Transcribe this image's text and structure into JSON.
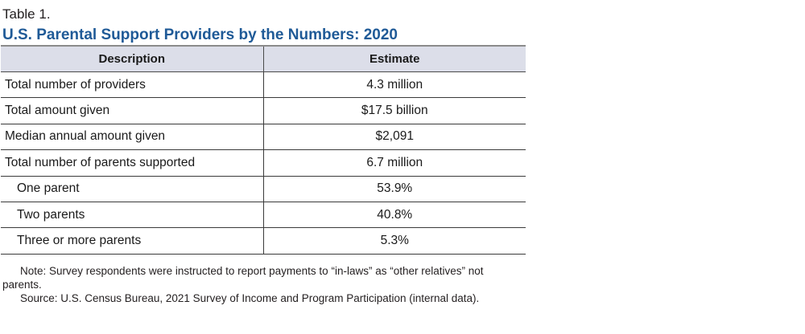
{
  "table_label": "Table 1.",
  "title": "U.S. Parental Support Providers by the Numbers: 2020",
  "columns": {
    "description": "Description",
    "estimate": "Estimate"
  },
  "rows": [
    {
      "description": "Total number of providers",
      "estimate": "4.3 million",
      "indent": false
    },
    {
      "description": "Total amount given",
      "estimate": "$17.5 billion",
      "indent": false
    },
    {
      "description": "Median annual amount given",
      "estimate": "$2,091",
      "indent": false
    },
    {
      "description": "Total number of parents supported",
      "estimate": "6.7 million",
      "indent": false
    },
    {
      "description": "One parent",
      "estimate": "53.9%",
      "indent": true
    },
    {
      "description": "Two parents",
      "estimate": "40.8%",
      "indent": true
    },
    {
      "description": "Three or more parents",
      "estimate": "5.3%",
      "indent": true
    }
  ],
  "notes": {
    "note": "Note: Survey respondents were instructed to report payments to “in-laws” as “other relatives” not parents.",
    "source": "Source: U.S. Census Bureau, 2021 Survey of Income and Program Participation (internal data)."
  },
  "colors": {
    "title": "#1f5a97",
    "header_background": "#dcdee9"
  }
}
